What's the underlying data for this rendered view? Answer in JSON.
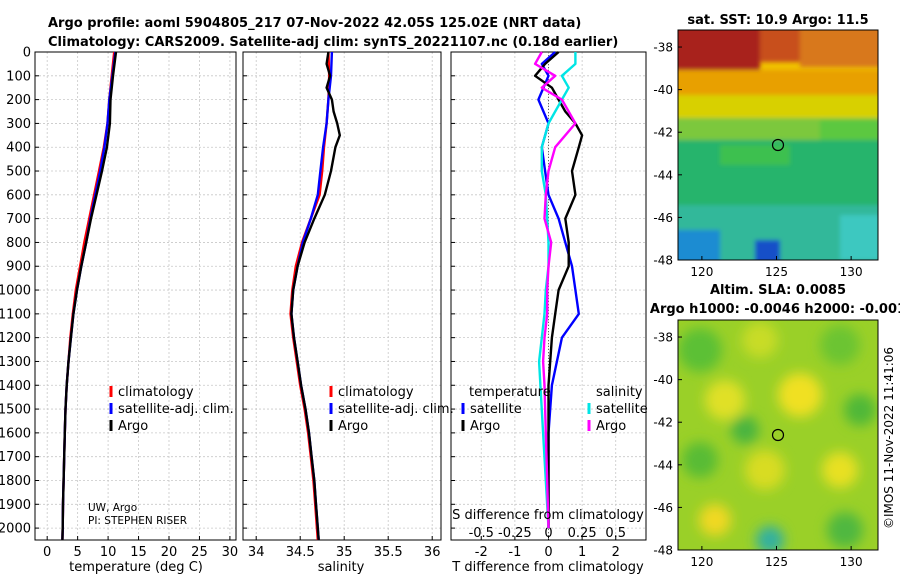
{
  "title": {
    "line1": "Argo profile: aoml 5904805_217 07-Nov-2022 42.05S 125.02E (NRT data)",
    "line2": "Climatology: CARS2009. Satellite-adj clim: synTS_20221107.nc (0.18d earlier)"
  },
  "map_sst": {
    "title": "sat. SST: 10.9 Argo: 11.5",
    "xticks": [
      "120",
      "125",
      "130"
    ],
    "yticks": [
      "-38",
      "-40",
      "-42",
      "-44",
      "-46",
      "-48"
    ]
  },
  "map_sla": {
    "title1": "Altim. SLA: 0.0085",
    "title2": "Argo h1000: -0.0046 h2000: -0.001",
    "xticks": [
      "120",
      "125",
      "130"
    ],
    "yticks": [
      "-38",
      "-40",
      "-42",
      "-44",
      "-46",
      "-48"
    ]
  },
  "credit": {
    "line1": "UW, Argo",
    "line2": "PI: STEPHEN RISER"
  },
  "timestamp": "©IMOS 11-Nov-2022 11:41:06",
  "colors": {
    "climatology": "#ff0000",
    "satellite": "#0000ff",
    "argo": "#000000",
    "sat_salinity": "#00e5e5",
    "argo_salinity": "#ff00ff"
  },
  "chart_data": [
    {
      "type": "line",
      "panel": "temperature",
      "xlabel": "temperature (deg C)",
      "ylabel": "",
      "xlim": [
        -2,
        31
      ],
      "ylim": [
        2050,
        0
      ],
      "xticks": [
        "0",
        "5",
        "10",
        "15",
        "20",
        "25",
        "30"
      ],
      "yticks": [
        "0",
        "100",
        "200",
        "300",
        "400",
        "500",
        "600",
        "700",
        "800",
        "900",
        "1000",
        "1100",
        "1200",
        "1300",
        "1400",
        "1500",
        "1600",
        "1700",
        "1800",
        "1900",
        "2000"
      ],
      "legend": [
        "climatology",
        "satellite-adj. clim.",
        "Argo"
      ],
      "series": [
        {
          "name": "climatology",
          "depth": [
            0,
            100,
            200,
            300,
            400,
            500,
            600,
            700,
            800,
            900,
            1000,
            1100,
            1200,
            1300,
            1400,
            1500,
            1600,
            1700,
            1800,
            1900,
            2000,
            2050
          ],
          "values": [
            11.0,
            10.6,
            10.2,
            9.9,
            9.3,
            8.5,
            7.7,
            6.9,
            6.1,
            5.4,
            4.7,
            4.2,
            3.8,
            3.5,
            3.2,
            3.0,
            2.9,
            2.8,
            2.7,
            2.6,
            2.55,
            2.5
          ]
        },
        {
          "name": "satellite-adj. clim.",
          "depth": [
            0,
            100,
            200,
            300,
            400,
            500,
            600,
            700,
            800,
            900,
            1000,
            1100,
            1200,
            1300,
            1400,
            1500,
            1600,
            1700,
            1800,
            1900,
            2000,
            2050
          ],
          "values": [
            11.2,
            10.7,
            10.2,
            9.9,
            9.4,
            8.7,
            7.9,
            7.1,
            6.4,
            5.6,
            4.9,
            4.3,
            3.9,
            3.5,
            3.2,
            3.0,
            2.9,
            2.8,
            2.7,
            2.6,
            2.55,
            2.5
          ]
        },
        {
          "name": "Argo",
          "depth": [
            0,
            100,
            200,
            300,
            400,
            500,
            600,
            700,
            800,
            900,
            1000,
            1100,
            1200,
            1300,
            1400,
            1500,
            1600,
            1700,
            1800,
            1900,
            2000,
            2050
          ],
          "values": [
            11.3,
            10.8,
            10.4,
            10.3,
            9.8,
            9.0,
            8.1,
            7.2,
            6.4,
            5.6,
            4.9,
            4.3,
            3.9,
            3.5,
            3.2,
            3.0,
            2.9,
            2.8,
            2.7,
            2.6,
            2.55,
            2.5
          ]
        }
      ]
    },
    {
      "type": "line",
      "panel": "salinity",
      "xlabel": "salinity",
      "ylabel": "",
      "xlim": [
        33.85,
        36.1
      ],
      "ylim": [
        2050,
        0
      ],
      "xticks": [
        "34",
        "34.5",
        "35",
        "35.5",
        "36"
      ],
      "legend": [
        "climatology",
        "satellite-adj. clim.",
        "Argo"
      ],
      "series": [
        {
          "name": "climatology",
          "depth": [
            0,
            100,
            200,
            300,
            400,
            500,
            600,
            700,
            800,
            900,
            1000,
            1100,
            1200,
            1300,
            1400,
            1500,
            1600,
            1700,
            1800,
            1900,
            2000,
            2050
          ],
          "values": [
            34.82,
            34.83,
            34.82,
            34.8,
            34.77,
            34.75,
            34.72,
            34.62,
            34.52,
            34.45,
            34.41,
            34.39,
            34.42,
            34.46,
            34.5,
            34.55,
            34.59,
            34.62,
            34.65,
            34.67,
            34.69,
            34.7
          ]
        },
        {
          "name": "satellite-adj. clim.",
          "depth": [
            0,
            100,
            200,
            300,
            400,
            500,
            600,
            700,
            800,
            900,
            1000,
            1100,
            1200,
            1300,
            1400,
            1500,
            1600,
            1700,
            1800,
            1900,
            2000,
            2050
          ],
          "values": [
            34.86,
            34.85,
            34.82,
            34.8,
            34.76,
            34.73,
            34.7,
            34.62,
            34.53,
            34.47,
            34.42,
            34.4,
            34.43,
            34.47,
            34.51,
            34.56,
            34.6,
            34.63,
            34.66,
            34.68,
            34.7,
            34.71
          ]
        },
        {
          "name": "Argo",
          "depth": [
            0,
            50,
            100,
            150,
            200,
            250,
            300,
            350,
            400,
            500,
            600,
            700,
            800,
            900,
            1000,
            1100,
            1200,
            1300,
            1400,
            1500,
            1600,
            1700,
            1800,
            1900,
            2000,
            2050
          ],
          "values": [
            34.82,
            34.8,
            34.84,
            34.8,
            34.86,
            34.88,
            34.92,
            34.95,
            34.9,
            34.85,
            34.78,
            34.66,
            34.55,
            34.47,
            34.42,
            34.4,
            34.43,
            34.47,
            34.51,
            34.56,
            34.6,
            34.63,
            34.66,
            34.68,
            34.7,
            34.71
          ]
        }
      ]
    },
    {
      "type": "line",
      "panel": "difference",
      "xlabel": "T difference from climatology",
      "xlabel2": "S difference from climatology",
      "xlim": [
        -2.9,
        2.9
      ],
      "ylim": [
        2050,
        0
      ],
      "xticks": [
        "-2",
        "-1",
        "0",
        "1",
        "2"
      ],
      "xticks_s": [
        "-0.5",
        "-0.25",
        "0",
        "0.25",
        "0.5"
      ],
      "legend_headers": [
        "temperature",
        "salinity"
      ],
      "legend": [
        "satellite",
        "Argo",
        "satellite",
        "Argo"
      ],
      "series": [
        {
          "name": "temperature satellite",
          "depth": [
            0,
            50,
            100,
            200,
            300,
            400,
            500,
            600,
            700,
            800,
            900,
            1000,
            1100,
            1200,
            1400,
            1600,
            1800,
            2000
          ],
          "values": [
            0.2,
            -0.2,
            0.0,
            -0.3,
            0.0,
            -0.2,
            -0.1,
            0.0,
            0.3,
            0.5,
            0.7,
            0.8,
            0.9,
            0.4,
            0.1,
            0.0,
            0.0,
            0.0
          ]
        },
        {
          "name": "temperature Argo",
          "depth": [
            0,
            50,
            100,
            150,
            200,
            250,
            300,
            350,
            400,
            500,
            600,
            700,
            800,
            900,
            1000,
            1100,
            1200,
            1400,
            1600,
            1800,
            2000
          ],
          "values": [
            0.3,
            -0.1,
            -0.4,
            0.1,
            0.3,
            0.5,
            0.8,
            1.0,
            0.9,
            0.7,
            0.8,
            0.5,
            0.6,
            0.6,
            0.3,
            0.2,
            0.1,
            0.0,
            0.0,
            0.0,
            0.0
          ]
        },
        {
          "name": "salinity satellite",
          "depth": [
            0,
            50,
            100,
            150,
            200,
            300,
            400,
            500,
            600,
            700,
            800,
            900,
            1000,
            1100,
            1200,
            1300,
            1400,
            1600,
            1800,
            2000
          ],
          "values": [
            0.2,
            0.2,
            0.1,
            0.15,
            0.1,
            0.0,
            -0.05,
            -0.05,
            -0.02,
            -0.01,
            0.0,
            0.0,
            -0.02,
            -0.03,
            -0.05,
            -0.07,
            -0.06,
            -0.04,
            -0.02,
            0.0
          ]
        },
        {
          "name": "salinity Argo",
          "depth": [
            0,
            50,
            100,
            150,
            200,
            300,
            400,
            500,
            600,
            700,
            800,
            900,
            1000,
            1100,
            1200,
            1300,
            1400,
            1600,
            1800,
            2000
          ],
          "values": [
            -0.05,
            -0.1,
            0.05,
            -0.05,
            0.1,
            0.2,
            0.05,
            0.0,
            -0.02,
            -0.03,
            0.02,
            0.0,
            -0.01,
            -0.01,
            -0.03,
            -0.04,
            -0.03,
            -0.02,
            -0.01,
            0.0
          ]
        }
      ]
    }
  ]
}
